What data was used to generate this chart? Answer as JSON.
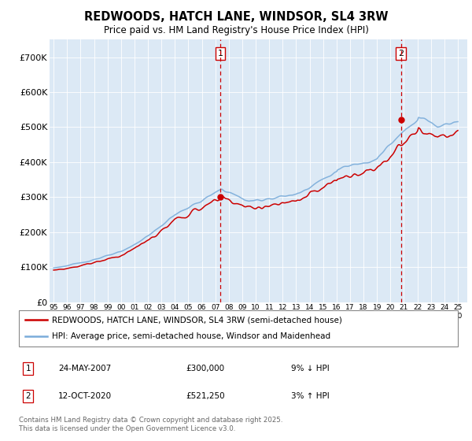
{
  "title": "REDWOODS, HATCH LANE, WINDSOR, SL4 3RW",
  "subtitle": "Price paid vs. HM Land Registry's House Price Index (HPI)",
  "bg_color": "#dce9f5",
  "fig_bg": "#ffffff",
  "red_color": "#cc0000",
  "blue_color": "#7aacda",
  "ylim": [
    0,
    750000
  ],
  "yticks": [
    0,
    100000,
    200000,
    300000,
    400000,
    500000,
    600000,
    700000
  ],
  "ytick_labels": [
    "£0",
    "£100K",
    "£200K",
    "£300K",
    "£400K",
    "£500K",
    "£600K",
    "£700K"
  ],
  "sale1_x": 2007.38,
  "sale1_y": 300000,
  "sale2_x": 2020.78,
  "sale2_y": 521250,
  "legend_line1": "REDWOODS, HATCH LANE, WINDSOR, SL4 3RW (semi-detached house)",
  "legend_line2": "HPI: Average price, semi-detached house, Windsor and Maidenhead",
  "sale1_date": "24-MAY-2007",
  "sale1_price": "£300,000",
  "sale1_hpi": "9% ↓ HPI",
  "sale2_date": "12-OCT-2020",
  "sale2_price": "£521,250",
  "sale2_hpi": "3% ↑ HPI",
  "footer": "Contains HM Land Registry data © Crown copyright and database right 2025.\nThis data is licensed under the Open Government Licence v3.0.",
  "xmin": 1994.7,
  "xmax": 2025.7
}
